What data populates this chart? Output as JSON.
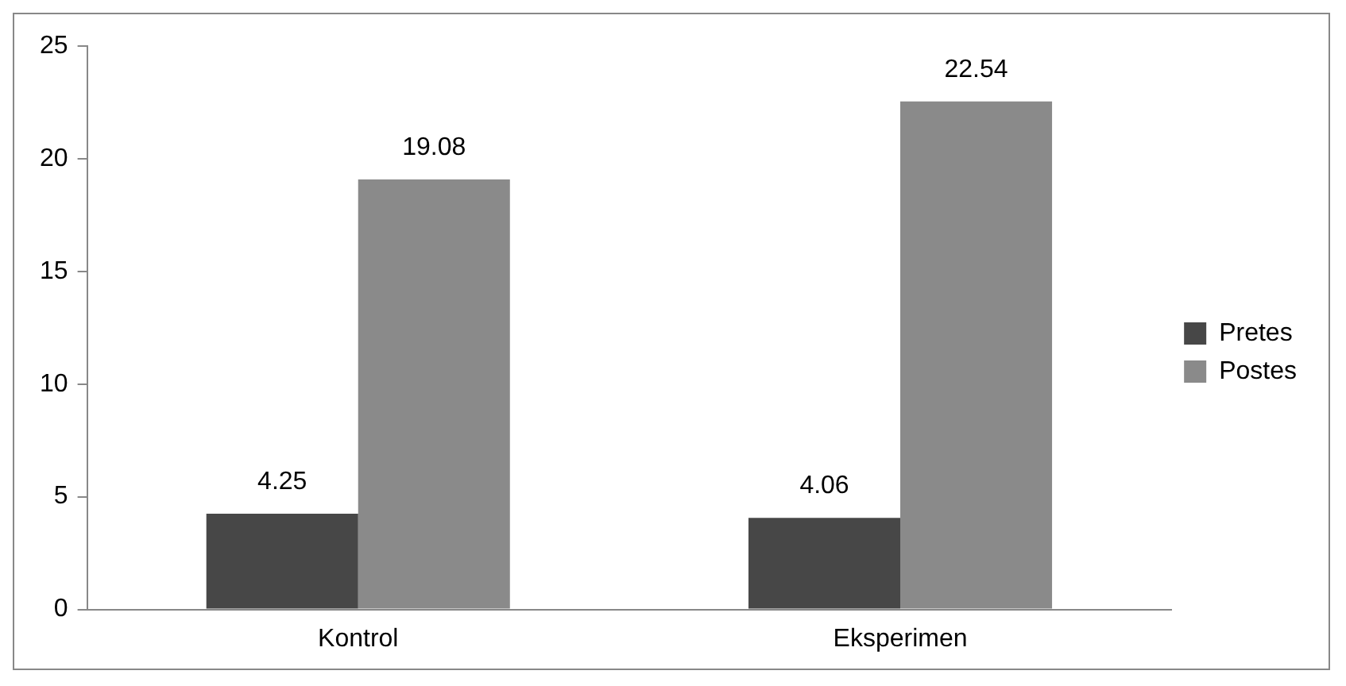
{
  "chart_data": {
    "type": "bar",
    "categories": [
      "Kontrol",
      "Eksperimen"
    ],
    "series": [
      {
        "name": "Pretes",
        "color": "#474747",
        "values": [
          4.25,
          4.06
        ]
      },
      {
        "name": "Postes",
        "color": "#8a8a8a",
        "values": [
          19.08,
          22.54
        ]
      }
    ],
    "ylim": [
      0,
      25
    ],
    "yticks": [
      0,
      5,
      10,
      15,
      20,
      25
    ],
    "grid": false,
    "legend": "right",
    "data_labels": true
  }
}
